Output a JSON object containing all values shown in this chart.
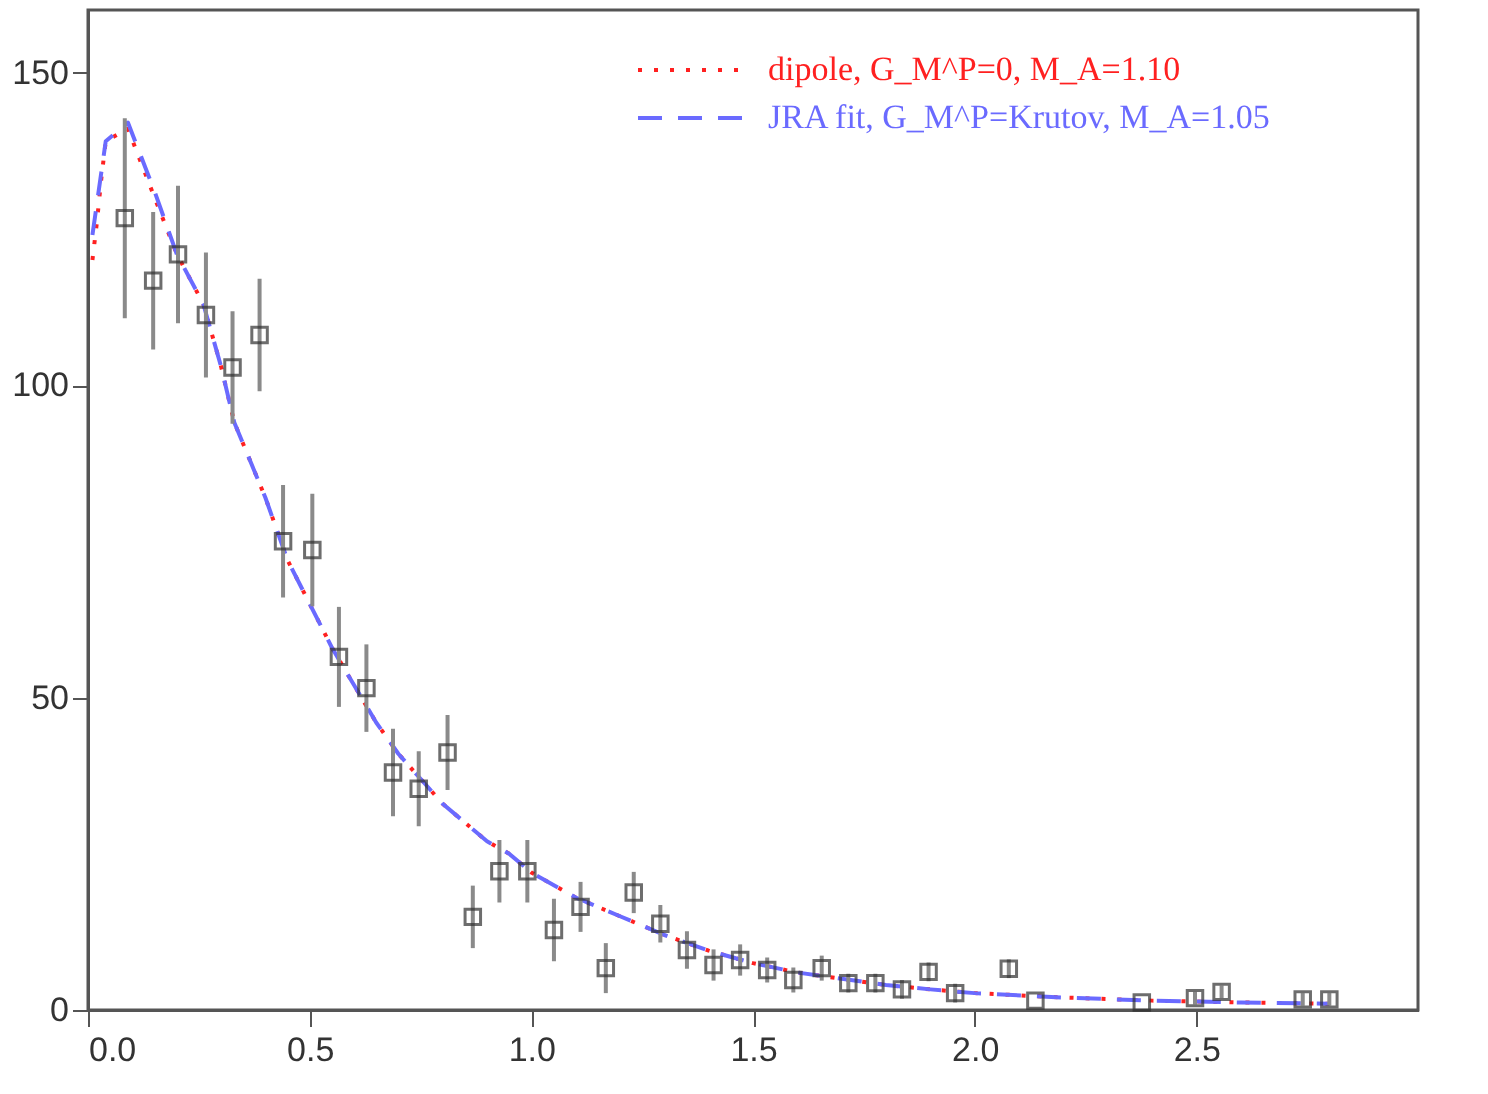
{
  "chart_data": {
    "type": "scatter",
    "xlim": [
      0,
      3.0
    ],
    "ylim": [
      0,
      160
    ],
    "xticks": [
      {
        "value": 0,
        "label": "0.0"
      },
      {
        "value": 0.5,
        "label": "0.5"
      },
      {
        "value": 1.0,
        "label": "1.0"
      },
      {
        "value": 1.5,
        "label": "1.5"
      },
      {
        "value": 2.0,
        "label": "2.0"
      },
      {
        "value": 2.5,
        "label": "2.5"
      }
    ],
    "yticks": [
      0,
      50,
      100,
      150
    ],
    "grid": false,
    "legend": "top right",
    "series": [
      {
        "type": "line",
        "name": "dipole, G_M^P=0, M_A=1.10",
        "color": "#ff2020",
        "line_style": "dotted",
        "marker": "none",
        "x": [
          0.01,
          0.02,
          0.03,
          0.04,
          0.09,
          0.15,
          0.2,
          0.26,
          0.3,
          0.33,
          0.4,
          0.45,
          0.5,
          0.55,
          0.6,
          0.65,
          0.7,
          0.75,
          0.8,
          0.85,
          0.9,
          0.95,
          1.0,
          1.1,
          1.2,
          1.3,
          1.4,
          1.5,
          1.6,
          1.7,
          1.8,
          1.9,
          2.0,
          2.2,
          2.4,
          2.6,
          2.8
        ],
        "values": [
          120,
          126,
          133,
          139,
          141,
          130,
          121,
          113,
          103,
          94,
          82,
          72,
          65,
          58,
          52,
          46,
          41,
          37,
          33,
          30,
          27,
          25,
          22,
          18,
          15,
          12,
          9.5,
          7.5,
          6,
          5,
          4,
          3.3,
          2.7,
          2,
          1.5,
          1.2,
          1.0
        ]
      },
      {
        "type": "line",
        "name": "JRA fit, G_M^P=Krutov, M_A=1.05",
        "color": "#6a6aff",
        "line_style": "dashed",
        "marker": "none",
        "x": [
          0.01,
          0.02,
          0.03,
          0.04,
          0.09,
          0.15,
          0.2,
          0.26,
          0.3,
          0.33,
          0.4,
          0.45,
          0.5,
          0.55,
          0.6,
          0.65,
          0.7,
          0.75,
          0.8,
          0.85,
          0.9,
          0.95,
          1.0,
          1.1,
          1.2,
          1.3,
          1.4,
          1.5,
          1.6,
          1.7,
          1.8,
          1.9,
          2.0,
          2.2,
          2.4,
          2.6,
          2.8
        ],
        "values": [
          124,
          129,
          134,
          139,
          142,
          131,
          121,
          113,
          103,
          94,
          82,
          72,
          65,
          58,
          52,
          46,
          41,
          37,
          33,
          30,
          27,
          25,
          22,
          18,
          15,
          12,
          9.5,
          7.5,
          6,
          5,
          4,
          3.3,
          2.7,
          2,
          1.5,
          1.2,
          1.0
        ]
      },
      {
        "color": "#303030",
        "marker": "square",
        "x": [
          0.083,
          0.147,
          0.203,
          0.266,
          0.326,
          0.387,
          0.44,
          0.506,
          0.566,
          0.628,
          0.688,
          0.746,
          0.811,
          0.868,
          0.928,
          0.991,
          1.051,
          1.111,
          1.168,
          1.231,
          1.291,
          1.351,
          1.411,
          1.471,
          1.532,
          1.591,
          1.655,
          1.715,
          1.776,
          1.836,
          1.896,
          1.956,
          2.077,
          2.137,
          2.377,
          2.497,
          2.557,
          2.74,
          2.8
        ],
        "values": [
          126.7,
          116.7,
          120.9,
          111.2,
          102.8,
          108,
          75,
          73.6,
          56.5,
          51.5,
          38,
          35.4,
          41.2,
          14.9,
          22.2,
          22.2,
          12.8,
          16.5,
          6.7,
          18.8,
          13.8,
          9.6,
          7.2,
          8.0,
          6.4,
          4.8,
          6.7,
          4.3,
          4.3,
          3.3,
          6.1,
          2.7,
          6.6,
          1.5,
          1.2,
          1.9,
          2.9,
          1.7,
          1.7
        ],
        "errors": [
          16,
          11,
          11,
          10,
          9,
          9,
          9,
          9,
          8,
          7,
          7,
          6,
          6,
          5,
          5,
          5,
          5,
          4,
          4,
          3.3,
          3,
          3,
          2.5,
          2.5,
          2,
          2,
          2,
          1.5,
          1.5,
          1.5,
          1.5,
          1.5,
          1.5,
          null,
          null,
          1,
          1,
          1,
          1
        ]
      }
    ]
  }
}
